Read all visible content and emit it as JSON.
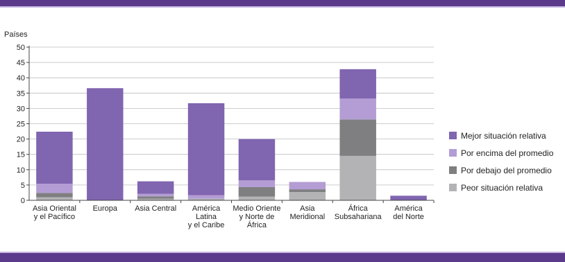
{
  "frame": {
    "bar_color": "#5b3a8c",
    "line_color": "#c9b8e2"
  },
  "chart_data": {
    "type": "bar",
    "stacked": true,
    "ylabel": "Países",
    "ylim": [
      0,
      50
    ],
    "yticks": [
      0,
      5,
      10,
      15,
      20,
      25,
      30,
      35,
      40,
      45,
      50
    ],
    "grid": true,
    "legend_position": "right",
    "categories": [
      [
        "Asia Oriental",
        "y el Pacífico"
      ],
      [
        "Europa"
      ],
      [
        "Asia Central"
      ],
      [
        "América",
        "Latina",
        "y el Caribe"
      ],
      [
        "Medio Oriente",
        "y Norte de",
        "África"
      ],
      [
        "Asia",
        "Meridional"
      ],
      [
        "África",
        "Subsahariana"
      ],
      [
        "América",
        "del Norte"
      ]
    ],
    "series": [
      {
        "name": "Peor situación relativa",
        "color": "#b3b3b6",
        "values": [
          1,
          0,
          0.5,
          0.5,
          1.2,
          2.7,
          14.5,
          0
        ]
      },
      {
        "name": "Por debajo del promedio",
        "color": "#7f7f82",
        "values": [
          1.4,
          0,
          0.8,
          0,
          3.1,
          0.9,
          11.9,
          0
        ]
      },
      {
        "name": "Por encima del promedio",
        "color": "#b39dd4",
        "values": [
          3,
          0,
          0.8,
          1.2,
          2.2,
          2.4,
          6.8,
          0
        ]
      },
      {
        "name": "Mejor situación relativa",
        "color": "#8065b0",
        "values": [
          17,
          36.6,
          4.1,
          30,
          13.5,
          0,
          9.6,
          1.5
        ]
      }
    ],
    "legend_order": [
      3,
      2,
      1,
      0
    ]
  }
}
